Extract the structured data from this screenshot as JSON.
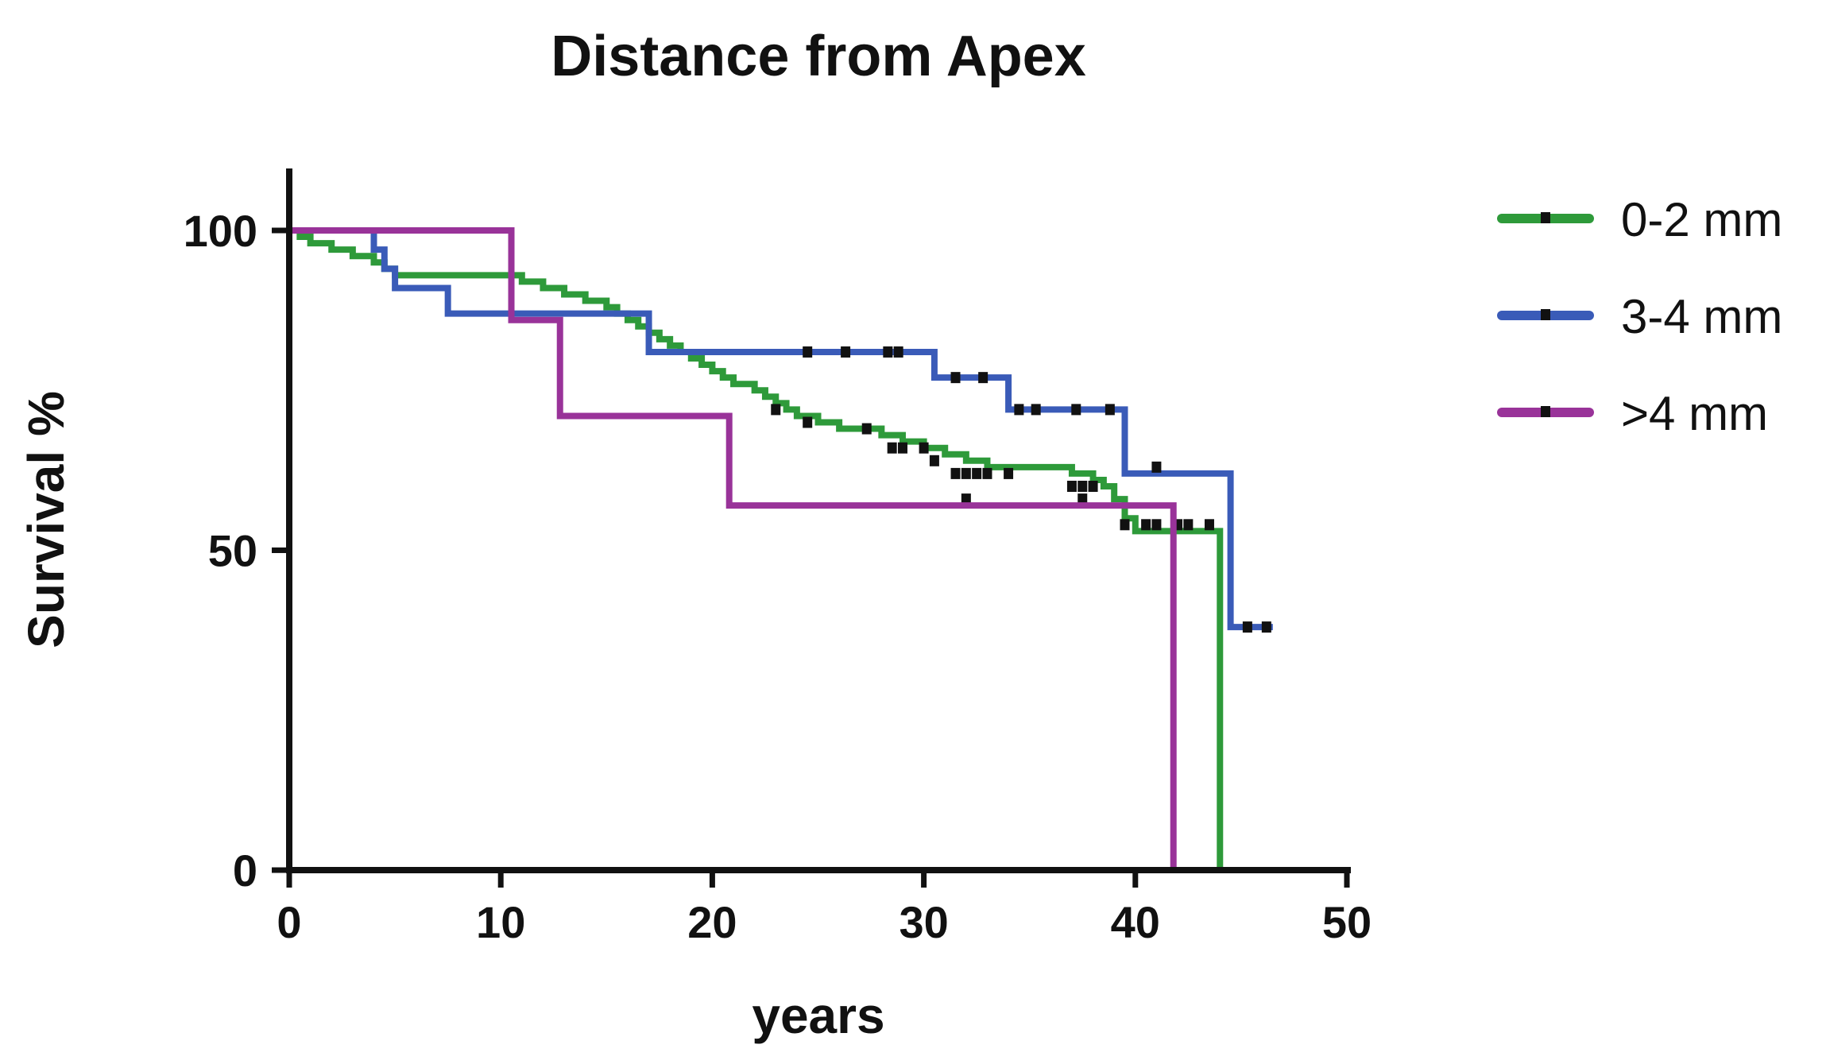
{
  "chart_data": {
    "type": "line",
    "title": "Distance from Apex",
    "xlabel": "years",
    "ylabel": "Survival %",
    "xlim": [
      0,
      50
    ],
    "ylim": [
      0,
      100
    ],
    "x_ticks": [
      "0",
      "10",
      "20",
      "30",
      "40",
      "50"
    ],
    "y_ticks": [
      "0",
      "50",
      "100"
    ],
    "grid": false,
    "legend_position": "right",
    "step": true,
    "series": [
      {
        "name": "0-2 mm",
        "color": "#2e9a3a",
        "points": [
          [
            0,
            100
          ],
          [
            0.5,
            99
          ],
          [
            1,
            98
          ],
          [
            2,
            97
          ],
          [
            3,
            96
          ],
          [
            4,
            95
          ],
          [
            4.5,
            94
          ],
          [
            5,
            93
          ],
          [
            10,
            93
          ],
          [
            11,
            92
          ],
          [
            12,
            91
          ],
          [
            13,
            90
          ],
          [
            14,
            89
          ],
          [
            15,
            88
          ],
          [
            15.5,
            87
          ],
          [
            16,
            86
          ],
          [
            16.5,
            85
          ],
          [
            17,
            84
          ],
          [
            17.5,
            83
          ],
          [
            18,
            82
          ],
          [
            18.5,
            81
          ],
          [
            19,
            80
          ],
          [
            19.5,
            79
          ],
          [
            20,
            78
          ],
          [
            20.5,
            77
          ],
          [
            21,
            76
          ],
          [
            22,
            75
          ],
          [
            22.5,
            74
          ],
          [
            23,
            73
          ],
          [
            23.5,
            72
          ],
          [
            24,
            71
          ],
          [
            25,
            70
          ],
          [
            26,
            69
          ],
          [
            28,
            68
          ],
          [
            29,
            67
          ],
          [
            30,
            66
          ],
          [
            31,
            65
          ],
          [
            32,
            64
          ],
          [
            33,
            63
          ],
          [
            37,
            62
          ],
          [
            38,
            61
          ],
          [
            38.5,
            60
          ],
          [
            39,
            58
          ],
          [
            39.5,
            55
          ],
          [
            40,
            53
          ],
          [
            44,
            53
          ],
          [
            44,
            0
          ]
        ],
        "censored": [
          [
            23,
            72
          ],
          [
            24.5,
            70
          ],
          [
            27.3,
            69
          ],
          [
            28.5,
            66
          ],
          [
            29,
            66
          ],
          [
            30,
            66
          ],
          [
            30.5,
            64
          ],
          [
            31.5,
            62
          ],
          [
            32,
            62
          ],
          [
            32.5,
            62
          ],
          [
            33,
            62
          ],
          [
            34,
            62
          ],
          [
            37,
            60
          ],
          [
            37.5,
            60
          ],
          [
            38,
            60
          ],
          [
            32,
            58
          ],
          [
            37.5,
            58
          ],
          [
            39.5,
            54
          ],
          [
            40.5,
            54
          ],
          [
            41,
            54
          ],
          [
            42,
            54
          ],
          [
            42.5,
            54
          ],
          [
            43.5,
            54
          ]
        ]
      },
      {
        "name": "3-4 mm",
        "color": "#3a5bb8",
        "points": [
          [
            0,
            100
          ],
          [
            4,
            100
          ],
          [
            4,
            97
          ],
          [
            4.5,
            94
          ],
          [
            5,
            91
          ],
          [
            7.5,
            91
          ],
          [
            7.5,
            87
          ],
          [
            17,
            87
          ],
          [
            17,
            81
          ],
          [
            30.5,
            81
          ],
          [
            30.5,
            77
          ],
          [
            34,
            77
          ],
          [
            34,
            72
          ],
          [
            39.5,
            72
          ],
          [
            39.5,
            62
          ],
          [
            44.5,
            62
          ],
          [
            44.5,
            38
          ],
          [
            46.5,
            38
          ]
        ],
        "censored": [
          [
            24.5,
            81
          ],
          [
            26.3,
            81
          ],
          [
            28.3,
            81
          ],
          [
            28.8,
            81
          ],
          [
            31.5,
            77
          ],
          [
            32.8,
            77
          ],
          [
            34.5,
            72
          ],
          [
            35.3,
            72
          ],
          [
            37.2,
            72
          ],
          [
            38.8,
            72
          ],
          [
            41,
            63
          ],
          [
            45.3,
            38
          ],
          [
            46.2,
            38
          ]
        ]
      },
      {
        "name": ">4 mm",
        "color": "#993399",
        "points": [
          [
            0,
            100
          ],
          [
            10.5,
            100
          ],
          [
            10.5,
            86
          ],
          [
            12.8,
            86
          ],
          [
            12.8,
            71
          ],
          [
            20.8,
            71
          ],
          [
            20.8,
            57
          ],
          [
            41.8,
            57
          ],
          [
            41.8,
            0
          ]
        ],
        "censored": []
      }
    ]
  }
}
